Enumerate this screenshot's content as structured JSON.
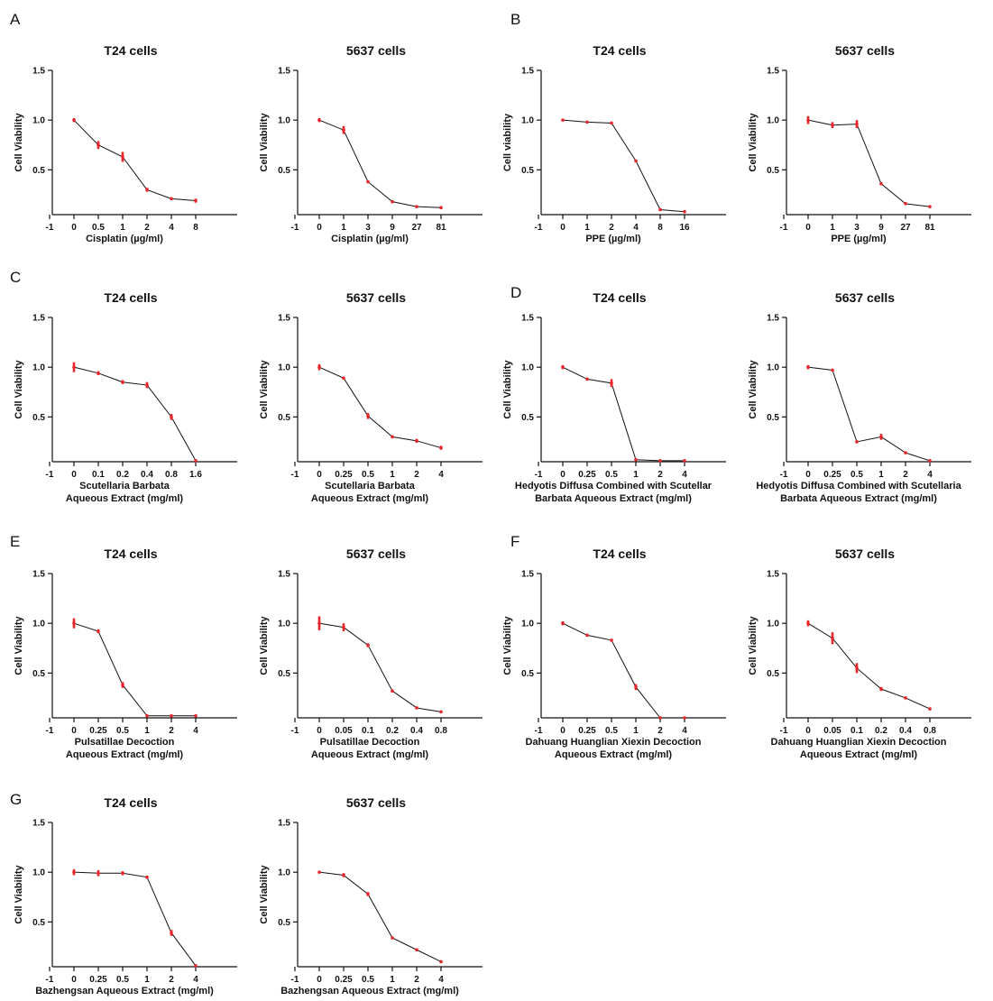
{
  "figure": {
    "panel_letters": [
      "A",
      "B",
      "C",
      "D",
      "E",
      "F",
      "G"
    ]
  },
  "chart_data": [
    {
      "panel": "A",
      "type": "line",
      "title": "T24 cells",
      "ylabel": "Cell Viability",
      "xlabel": [
        "Cisplatin (µg/ml)"
      ],
      "x_ticks": [
        "-1",
        "0",
        "0.5",
        "1",
        "2",
        "4",
        "8"
      ],
      "y_ticks": [
        "0.5",
        "1.0",
        "1.5"
      ],
      "ylim": [
        0.05,
        1.5
      ],
      "series": [
        {
          "values": [
            1.0,
            0.75,
            0.63,
            0.3,
            0.21,
            0.19
          ],
          "errors": [
            0.02,
            0.04,
            0.05,
            0.02,
            0.01,
            0.02
          ]
        }
      ],
      "error_bar_color": "#e8252b",
      "line_color": "#111111"
    },
    {
      "panel": "A",
      "type": "line",
      "title": "5637 cells",
      "ylabel": "Cell Viability",
      "xlabel": [
        "Cisplatin (µg/ml)"
      ],
      "x_ticks": [
        "-1",
        "0",
        "1",
        "3",
        "9",
        "27",
        "81"
      ],
      "y_ticks": [
        "0.5",
        "1.0",
        "1.5"
      ],
      "ylim": [
        0.05,
        1.5
      ],
      "series": [
        {
          "values": [
            1.0,
            0.9,
            0.38,
            0.18,
            0.13,
            0.12
          ],
          "errors": [
            0.02,
            0.04,
            0.01,
            0.01,
            0.005,
            0.005
          ]
        }
      ],
      "error_bar_color": "#e8252b",
      "line_color": "#111111"
    },
    {
      "panel": "B",
      "type": "line",
      "title": "T24 cells",
      "ylabel": "Cell viability",
      "xlabel": [
        "PPE (µg/ml)"
      ],
      "x_ticks": [
        "-1",
        "0",
        "1",
        "2",
        "4",
        "8",
        "16"
      ],
      "y_ticks": [
        "0.5",
        "1.0",
        "1.5"
      ],
      "ylim": [
        0.05,
        1.5
      ],
      "series": [
        {
          "values": [
            1.0,
            0.98,
            0.97,
            0.59,
            0.1,
            0.08
          ],
          "errors": [
            0.005,
            0.005,
            0.005,
            0.005,
            0.005,
            0.005
          ]
        }
      ],
      "error_bar_color": "#e8252b",
      "line_color": "#111111"
    },
    {
      "panel": "B",
      "type": "line",
      "title": "5637 cells",
      "ylabel": "Cell Viability",
      "xlabel": [
        "PPE (µg/ml)"
      ],
      "x_ticks": [
        "-1",
        "0",
        "1",
        "3",
        "9",
        "27",
        "81"
      ],
      "y_ticks": [
        "0.5",
        "1.0",
        "1.5"
      ],
      "ylim": [
        0.05,
        1.5
      ],
      "series": [
        {
          "values": [
            1.0,
            0.95,
            0.96,
            0.36,
            0.16,
            0.13
          ],
          "errors": [
            0.04,
            0.03,
            0.04,
            0.01,
            0.005,
            0.005
          ]
        }
      ],
      "error_bar_color": "#e8252b",
      "line_color": "#111111"
    },
    {
      "panel": "C",
      "type": "line",
      "title": "T24 cells",
      "ylabel": "Cell Viability",
      "xlabel": [
        "Scutellaria Barbata",
        "Aqueous Extract (mg/ml)"
      ],
      "x_ticks": [
        "-1",
        "0",
        "0.1",
        "0.2",
        "0.4",
        "0.8",
        "1.6"
      ],
      "y_ticks": [
        "0.5",
        "1.0",
        "1.5"
      ],
      "ylim": [
        0.05,
        1.5
      ],
      "series": [
        {
          "values": [
            1.0,
            0.94,
            0.85,
            0.82,
            0.5,
            0.06
          ],
          "errors": [
            0.05,
            0.02,
            0.02,
            0.03,
            0.03,
            0.005
          ]
        }
      ],
      "error_bar_color": "#e8252b",
      "line_color": "#111111"
    },
    {
      "panel": "C",
      "type": "line",
      "title": "5637 cells",
      "ylabel": "Cell Viability",
      "xlabel": [
        "Scutellaria Barbata",
        "Aqueous Extract (mg/ml)"
      ],
      "x_ticks": [
        "-1",
        "0",
        "0.25",
        "0.5",
        "1",
        "2",
        "4"
      ],
      "y_ticks": [
        "0.5",
        "1.0",
        "1.5"
      ],
      "ylim": [
        0.05,
        1.5
      ],
      "series": [
        {
          "values": [
            1.0,
            0.89,
            0.51,
            0.3,
            0.26,
            0.19
          ],
          "errors": [
            0.03,
            0.01,
            0.03,
            0.01,
            0.02,
            0.02
          ]
        }
      ],
      "error_bar_color": "#e8252b",
      "line_color": "#111111"
    },
    {
      "panel": "D",
      "type": "line",
      "title": "T24 cells",
      "ylabel": "Cell Viability",
      "xlabel": [
        "Hedyotis Diffusa Combined with Scutellar",
        "Barbata Aqueous Extract (mg/ml)"
      ],
      "x_ticks": [
        "-1",
        "0",
        "0.25",
        "0.5",
        "1",
        "2",
        "4"
      ],
      "y_ticks": [
        "0.5",
        "1.0",
        "1.5"
      ],
      "ylim": [
        0.05,
        1.5
      ],
      "series": [
        {
          "values": [
            1.0,
            0.88,
            0.84,
            0.07,
            0.06,
            0.06
          ],
          "errors": [
            0.02,
            0.01,
            0.04,
            0.005,
            0.005,
            0.005
          ]
        }
      ],
      "error_bar_color": "#e8252b",
      "line_color": "#111111"
    },
    {
      "panel": "D",
      "type": "line",
      "title": "5637 cells",
      "ylabel": "Cell Viability",
      "xlabel": [
        "Hedyotis Diffusa Combined with Scutellaria",
        "Barbata Aqueous Extract (mg/ml)"
      ],
      "x_ticks": [
        "-1",
        "0",
        "0.25",
        "0.5",
        "1",
        "2",
        "4"
      ],
      "y_ticks": [
        "0.5",
        "1.0",
        "1.5"
      ],
      "ylim": [
        0.05,
        1.5
      ],
      "series": [
        {
          "values": [
            1.0,
            0.97,
            0.25,
            0.3,
            0.14,
            0.06
          ],
          "errors": [
            0.02,
            0.01,
            0.01,
            0.03,
            0.005,
            0.005
          ]
        }
      ],
      "error_bar_color": "#e8252b",
      "line_color": "#111111"
    },
    {
      "panel": "E",
      "type": "line",
      "title": "T24 cells",
      "ylabel": "Cell Viability",
      "xlabel": [
        "Pulsatillae Decoction",
        "Aqueous Extract (mg/ml)"
      ],
      "x_ticks": [
        "-1",
        "0",
        "0.25",
        "0.5",
        "1",
        "2",
        "4"
      ],
      "y_ticks": [
        "0.5",
        "1.0",
        "1.5"
      ],
      "ylim": [
        0.05,
        1.5
      ],
      "series": [
        {
          "values": [
            1.0,
            0.92,
            0.38,
            0.07,
            0.07,
            0.07
          ],
          "errors": [
            0.05,
            0.02,
            0.03,
            0.005,
            0.005,
            0.005
          ]
        }
      ],
      "error_bar_color": "#e8252b",
      "line_color": "#111111"
    },
    {
      "panel": "E",
      "type": "line",
      "title": "5637 cells",
      "ylabel": "Cell Viability",
      "xlabel": [
        "Pulsatillae Decoction",
        "Aqueous Extract (mg/ml)"
      ],
      "x_ticks": [
        "-1",
        "0",
        "0.05",
        "0.1",
        "0.2",
        "0.4",
        "0.8"
      ],
      "y_ticks": [
        "0.5",
        "1.0",
        "1.5"
      ],
      "ylim": [
        0.05,
        1.5
      ],
      "series": [
        {
          "values": [
            1.0,
            0.96,
            0.78,
            0.32,
            0.15,
            0.11
          ],
          "errors": [
            0.07,
            0.04,
            0.02,
            0.01,
            0.01,
            0.005
          ]
        }
      ],
      "error_bar_color": "#e8252b",
      "line_color": "#111111"
    },
    {
      "panel": "F",
      "type": "line",
      "title": "T24 cells",
      "ylabel": "Cell Viability",
      "xlabel": [
        "Dahuang Huanglian Xiexin Decoction",
        "Aqueous Extract (mg/ml)"
      ],
      "x_ticks": [
        "-1",
        "0",
        "0.25",
        "0.5",
        "1",
        "2",
        "4"
      ],
      "y_ticks": [
        "0.5",
        "1.0",
        "1.5"
      ],
      "ylim": [
        0.05,
        1.5
      ],
      "series": [
        {
          "values": [
            1.0,
            0.88,
            0.83,
            0.36,
            0.05,
            0.05
          ],
          "errors": [
            0.02,
            0.01,
            0.01,
            0.03,
            0.005,
            0.005
          ]
        }
      ],
      "error_bar_color": "#e8252b",
      "line_color": "#111111"
    },
    {
      "panel": "F",
      "type": "line",
      "title": "5637 cells",
      "ylabel": "Cell Viability",
      "xlabel": [
        "Dahuang Huanglian Xiexin Decoction",
        "Aqueous Extract (mg/ml)"
      ],
      "x_ticks": [
        "-1",
        "0",
        "0.05",
        "0.1",
        "0.2",
        "0.4",
        "0.8"
      ],
      "y_ticks": [
        "0.5",
        "1.0",
        "1.5"
      ],
      "ylim": [
        0.05,
        1.5
      ],
      "series": [
        {
          "values": [
            1.0,
            0.85,
            0.55,
            0.34,
            0.25,
            0.14
          ],
          "errors": [
            0.03,
            0.06,
            0.05,
            0.02,
            0.01,
            0.005
          ]
        }
      ],
      "error_bar_color": "#e8252b",
      "line_color": "#111111"
    },
    {
      "panel": "G",
      "type": "line",
      "title": "T24 cells",
      "ylabel": "Cell Viability",
      "xlabel": [
        "Bazhengsan Aqueous Extract (mg/ml)"
      ],
      "x_ticks": [
        "-1",
        "0",
        "0.25",
        "0.5",
        "1",
        "2",
        "4"
      ],
      "y_ticks": [
        "0.5",
        "1.0",
        "1.5"
      ],
      "ylim": [
        0.05,
        1.5
      ],
      "series": [
        {
          "values": [
            1.0,
            0.99,
            0.99,
            0.95,
            0.39,
            0.06
          ],
          "errors": [
            0.03,
            0.03,
            0.02,
            0.005,
            0.03,
            0.005
          ]
        }
      ],
      "error_bar_color": "#e8252b",
      "line_color": "#111111"
    },
    {
      "panel": "G",
      "type": "line",
      "title": "5637 cells",
      "ylabel": "Cell Viability",
      "xlabel": [
        "Bazhengsan Aqueous Extract (mg/ml)"
      ],
      "x_ticks": [
        "-1",
        "0",
        "0.25",
        "0.5",
        "1",
        "2",
        "4"
      ],
      "y_ticks": [
        "0.5",
        "1.0",
        "1.5"
      ],
      "ylim": [
        0.05,
        1.5
      ],
      "series": [
        {
          "values": [
            1.0,
            0.97,
            0.78,
            0.34,
            0.22,
            0.1
          ],
          "errors": [
            0.01,
            0.02,
            0.02,
            0.01,
            0.01,
            0.005
          ]
        }
      ],
      "error_bar_color": "#e8252b",
      "line_color": "#111111"
    }
  ]
}
